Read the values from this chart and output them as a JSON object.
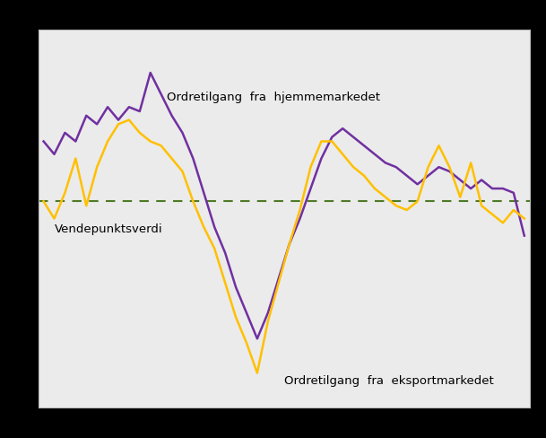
{
  "purple_line": [
    20,
    17,
    22,
    20,
    26,
    24,
    28,
    25,
    28,
    27,
    36,
    31,
    26,
    22,
    16,
    8,
    0,
    -6,
    -14,
    -20,
    -26,
    -20,
    -12,
    -4,
    2,
    9,
    16,
    21,
    23,
    21,
    19,
    17,
    15,
    14,
    12,
    10,
    12,
    14,
    13,
    11,
    9,
    11,
    9,
    9,
    8,
    -2
  ],
  "orange_line": [
    6,
    2,
    8,
    16,
    5,
    14,
    20,
    24,
    25,
    22,
    20,
    19,
    16,
    13,
    6,
    0,
    -5,
    -13,
    -21,
    -27,
    -34,
    -22,
    -13,
    -4,
    4,
    14,
    20,
    20,
    17,
    14,
    12,
    9,
    7,
    5,
    4,
    6,
    14,
    19,
    14,
    7,
    15,
    5,
    3,
    1,
    4,
    2
  ],
  "vendepunkt_y": 6,
  "purple_color": "#7030A0",
  "orange_color": "#FFC000",
  "green_dashed_color": "#4E7A26",
  "label_hjemme": "Ordretilgang  fra  hjemmemarkedet",
  "label_eksport": "Ordretilgang  fra  eksportmarkedet",
  "label_vendepunkt": "Vendepunktsverdi",
  "outer_bg_color": "#000000",
  "plot_bg_color": "#ebebeb",
  "ylim": [
    -42,
    46
  ],
  "xlim": [
    -0.5,
    45.5
  ],
  "grid_color": "#ffffff",
  "ann_hjemme_x": 11.5,
  "ann_hjemme_y": 29,
  "ann_eksport_x": 22.5,
  "ann_eksport_y": -37,
  "ann_vendepunkt_x": 1,
  "ann_vendepunkt_y": 1,
  "fontsize": 9.5
}
